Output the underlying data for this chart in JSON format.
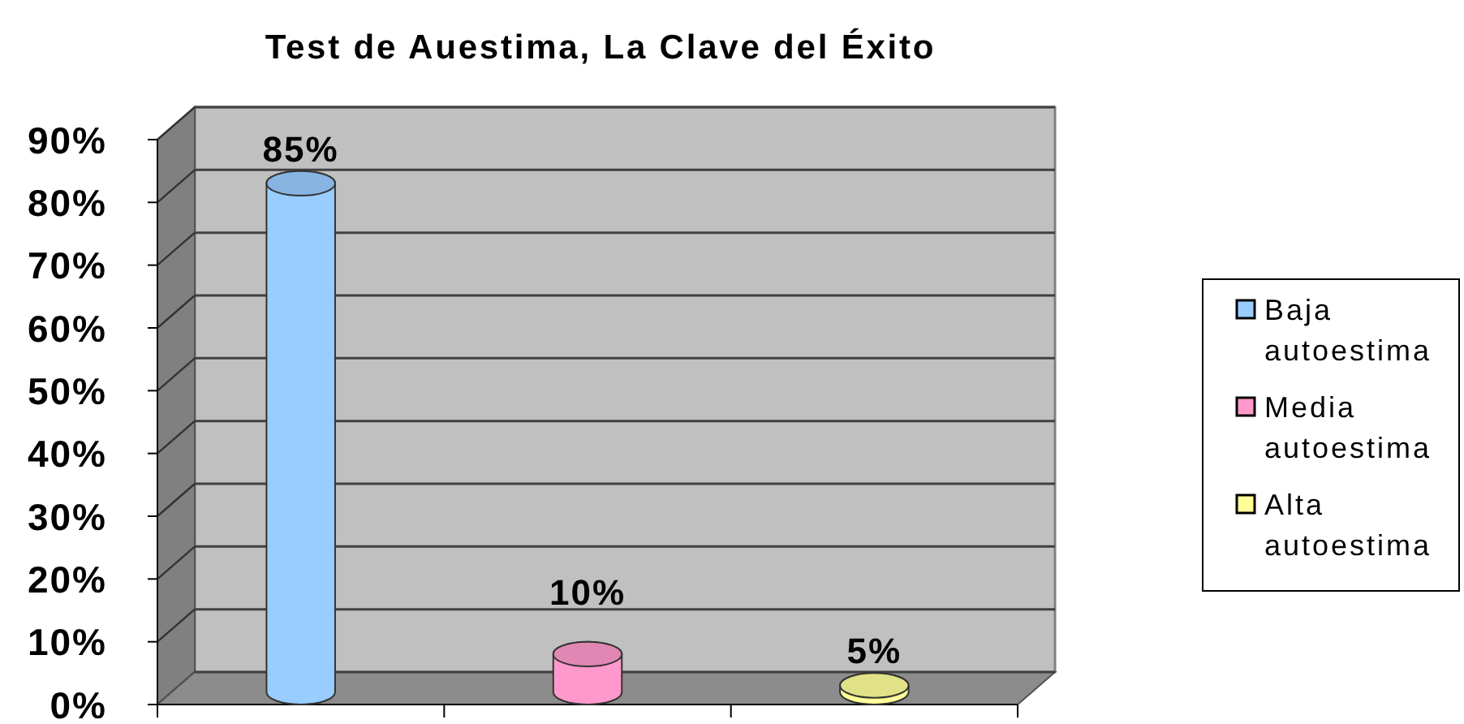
{
  "chart_data": {
    "type": "bar",
    "title": "Test de Auestima, La Clave del Éxito",
    "categories": [
      null,
      null,
      null
    ],
    "series": [
      {
        "name": "Baja autoestima",
        "color": "#99ccff",
        "values": [
          85,
          null,
          null
        ],
        "value_labels": [
          "85%",
          null,
          null
        ]
      },
      {
        "name": "Media autoestima",
        "color": "#ff99cc",
        "values": [
          null,
          10,
          null
        ],
        "value_labels": [
          null,
          "10%",
          null
        ]
      },
      {
        "name": "Alta autoestima",
        "color": "#ffff99",
        "values": [
          null,
          null,
          5
        ],
        "value_labels": [
          null,
          null,
          "5%"
        ]
      }
    ],
    "ylim": [
      0,
      90
    ],
    "yticks": [
      {
        "value": 0,
        "label": "0%"
      },
      {
        "value": 10,
        "label": "10%"
      },
      {
        "value": 20,
        "label": "20%"
      },
      {
        "value": 30,
        "label": "30%"
      },
      {
        "value": 40,
        "label": "40%"
      },
      {
        "value": 50,
        "label": "50%"
      },
      {
        "value": 60,
        "label": "60%"
      },
      {
        "value": 70,
        "label": "70%"
      },
      {
        "value": 80,
        "label": "80%"
      },
      {
        "value": 90,
        "label": "90%"
      }
    ],
    "grid": "y",
    "legend": "right"
  }
}
